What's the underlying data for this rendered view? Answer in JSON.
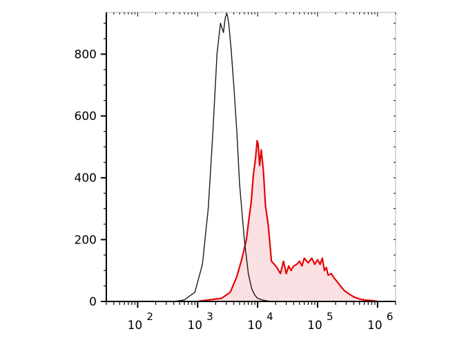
{
  "chart_data": {
    "type": "area",
    "title": "",
    "xlabel": "",
    "ylabel": "",
    "xscale": "log",
    "xlim": [
      30,
      2000000
    ],
    "ylim": [
      0,
      935
    ],
    "grid": false,
    "legend": "none",
    "x_ticks": [
      {
        "base": "10",
        "exp": "2",
        "value": 100
      },
      {
        "base": "10",
        "exp": "3",
        "value": 1000
      },
      {
        "base": "10",
        "exp": "4",
        "value": 10000
      },
      {
        "base": "10",
        "exp": "5",
        "value": 100000
      },
      {
        "base": "10",
        "exp": "6",
        "value": 1000000
      }
    ],
    "y_ticks": [
      {
        "label": "0",
        "value": 0
      },
      {
        "label": "200",
        "value": 200
      },
      {
        "label": "400",
        "value": 400
      },
      {
        "label": "600",
        "value": 600
      },
      {
        "label": "800",
        "value": 800
      }
    ],
    "series": [
      {
        "color": "#1a1a1a",
        "fill": "none",
        "x": [
          400,
          600,
          900,
          1200,
          1500,
          1800,
          2100,
          2400,
          2700,
          2900,
          3100,
          3300,
          3600,
          4000,
          4500,
          5000,
          6000,
          7000,
          8000,
          9000,
          10000,
          12000,
          14000,
          17000,
          22000
        ],
        "values": [
          0,
          5,
          30,
          120,
          300,
          550,
          800,
          900,
          870,
          920,
          930,
          900,
          820,
          700,
          550,
          380,
          200,
          90,
          40,
          20,
          10,
          5,
          2,
          0,
          0
        ]
      },
      {
        "color": "#e60000",
        "fill": "#fbe0e3",
        "x": [
          1000,
          1500,
          2500,
          3500,
          4500,
          5500,
          6500,
          7200,
          7800,
          8500,
          9200,
          9800,
          10200,
          10800,
          11500,
          12500,
          13500,
          15000,
          17000,
          19000,
          21000,
          24000,
          27000,
          30000,
          33000,
          36000,
          40000,
          45000,
          50000,
          55000,
          60000,
          70000,
          80000,
          90000,
          100000,
          110000,
          120000,
          130000,
          140000,
          150000,
          170000,
          190000,
          210000,
          240000,
          280000,
          330000,
          400000,
          500000,
          600000,
          800000,
          1000000
        ],
        "values": [
          0,
          5,
          10,
          30,
          80,
          140,
          200,
          270,
          320,
          410,
          460,
          520,
          510,
          440,
          490,
          420,
          310,
          250,
          130,
          120,
          110,
          90,
          130,
          90,
          115,
          100,
          115,
          120,
          130,
          115,
          140,
          125,
          140,
          120,
          135,
          120,
          140,
          100,
          110,
          85,
          90,
          75,
          65,
          50,
          35,
          25,
          15,
          8,
          5,
          3,
          0
        ]
      }
    ]
  }
}
